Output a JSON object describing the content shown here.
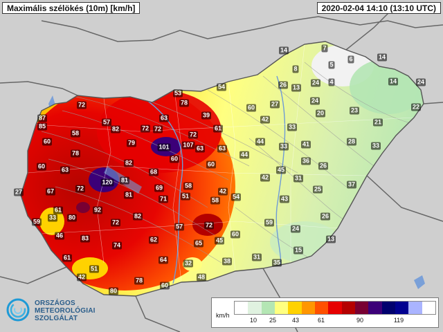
{
  "header": {
    "title": "Maximális szélökés (10m) [km/h]",
    "datetime": "2020-02-04 14:10 (13:10 UTC)"
  },
  "logo": {
    "icon": "omsz-swirl-logo-icon",
    "line1": "ORSZÁGOS",
    "line2": "METEOROLÓGIAI",
    "line3": "SZOLGÁLAT"
  },
  "legend": {
    "unit": "km/h",
    "ticks": [
      "10",
      "25",
      "43",
      "61",
      "90",
      "119"
    ],
    "colors": [
      "#ffffff",
      "#e0f2e0",
      "#b4e6b4",
      "#ffff80",
      "#ffd200",
      "#ff9600",
      "#ff5000",
      "#e60000",
      "#b40000",
      "#780032",
      "#3c0078",
      "#00006e",
      "#000090",
      "#aab4ff",
      "#ffffff"
    ]
  },
  "stations": [
    {
      "v": "72"
    },
    {
      "v": "87"
    },
    {
      "v": "85"
    },
    {
      "v": "57"
    },
    {
      "v": "58"
    },
    {
      "v": "82"
    },
    {
      "v": "72"
    },
    {
      "v": "72"
    },
    {
      "v": "63"
    },
    {
      "v": "53"
    },
    {
      "v": "78"
    },
    {
      "v": "54"
    },
    {
      "v": "39"
    },
    {
      "v": "60"
    },
    {
      "v": "14"
    },
    {
      "v": "26"
    },
    {
      "v": "13"
    },
    {
      "v": "27"
    },
    {
      "v": "7"
    },
    {
      "v": "6"
    },
    {
      "v": "5"
    },
    {
      "v": "4"
    },
    {
      "v": "8"
    },
    {
      "v": "14"
    },
    {
      "v": "24"
    },
    {
      "v": "14"
    },
    {
      "v": "24"
    },
    {
      "v": "24"
    },
    {
      "v": "22"
    },
    {
      "v": "20"
    },
    {
      "v": "23"
    },
    {
      "v": "21"
    },
    {
      "v": "42"
    },
    {
      "v": "33"
    },
    {
      "v": "61"
    },
    {
      "v": "72"
    },
    {
      "v": "79"
    },
    {
      "v": "101"
    },
    {
      "v": "107"
    },
    {
      "v": "63"
    },
    {
      "v": "63"
    },
    {
      "v": "60"
    },
    {
      "v": "60"
    },
    {
      "v": "78"
    },
    {
      "v": "82"
    },
    {
      "v": "63"
    },
    {
      "v": "44"
    },
    {
      "v": "33"
    },
    {
      "v": "41"
    },
    {
      "v": "28"
    },
    {
      "v": "33"
    },
    {
      "v": "60"
    },
    {
      "v": "60"
    },
    {
      "v": "44"
    },
    {
      "v": "45"
    },
    {
      "v": "36"
    },
    {
      "v": "26"
    },
    {
      "v": "68"
    },
    {
      "v": "42"
    },
    {
      "v": "31"
    },
    {
      "v": "37"
    },
    {
      "v": "25"
    },
    {
      "v": "27"
    },
    {
      "v": "67"
    },
    {
      "v": "72"
    },
    {
      "v": "120"
    },
    {
      "v": "81"
    },
    {
      "v": "69"
    },
    {
      "v": "58"
    },
    {
      "v": "42"
    },
    {
      "v": "81"
    },
    {
      "v": "71"
    },
    {
      "v": "51"
    },
    {
      "v": "58"
    },
    {
      "v": "54"
    },
    {
      "v": "43"
    },
    {
      "v": "61"
    },
    {
      "v": "92"
    },
    {
      "v": "59"
    },
    {
      "v": "33"
    },
    {
      "v": "80"
    },
    {
      "v": "72"
    },
    {
      "v": "82"
    },
    {
      "v": "26"
    },
    {
      "v": "72"
    },
    {
      "v": "59"
    },
    {
      "v": "57"
    },
    {
      "v": "24"
    },
    {
      "v": "46"
    },
    {
      "v": "83"
    },
    {
      "v": "62"
    },
    {
      "v": "65"
    },
    {
      "v": "45"
    },
    {
      "v": "60"
    },
    {
      "v": "13"
    },
    {
      "v": "74"
    },
    {
      "v": "15"
    },
    {
      "v": "61"
    },
    {
      "v": "64"
    },
    {
      "v": "32"
    },
    {
      "v": "38"
    },
    {
      "v": "31"
    },
    {
      "v": "35"
    },
    {
      "v": "51"
    },
    {
      "v": "42"
    },
    {
      "v": "78"
    },
    {
      "v": "48"
    },
    {
      "v": "60"
    },
    {
      "v": "80"
    }
  ]
}
